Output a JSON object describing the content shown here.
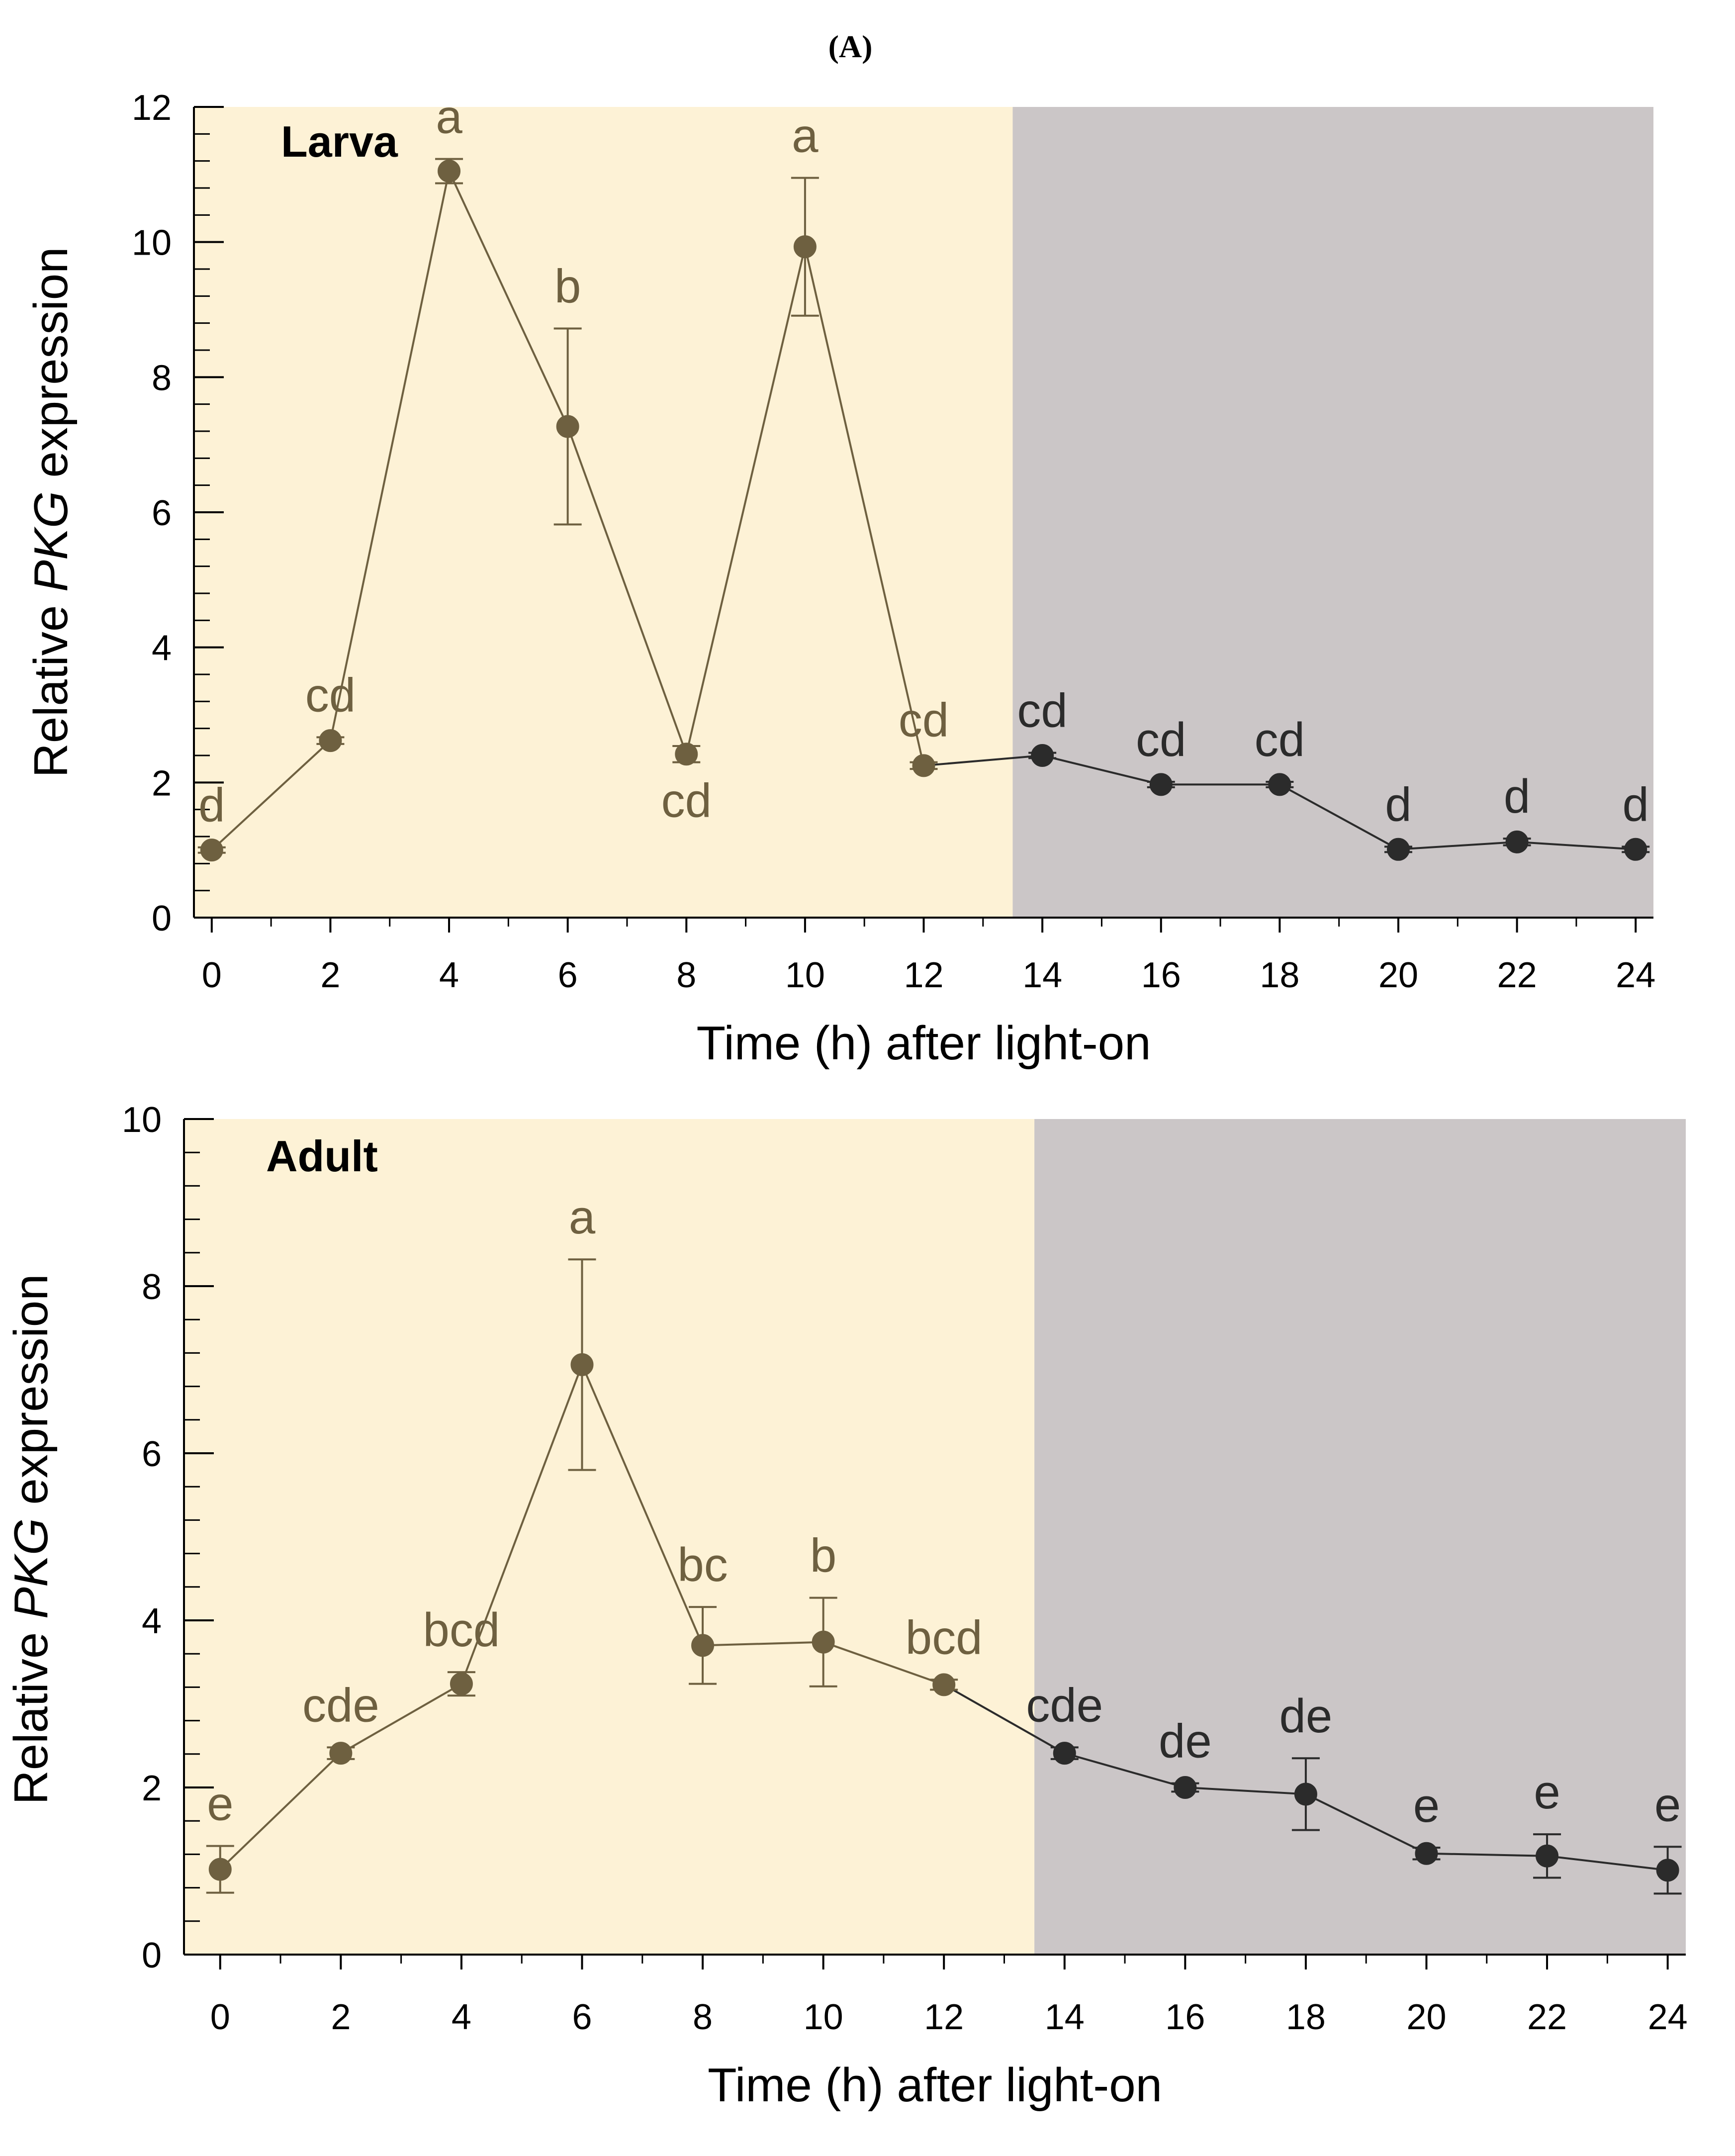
{
  "figure_label": "(A)",
  "colors": {
    "light_bg": "#fdf2d6",
    "dark_bg": "#cbc6c7",
    "light_series": "#6e6040",
    "dark_series": "#2b2b2b",
    "axis": "#000000"
  },
  "chart_data": [
    {
      "type": "line",
      "panel": "Larva",
      "title": "Larva",
      "xlabel": "Time (h) after light-on",
      "ylabel_parts": [
        "Relative ",
        "PKG",
        " expression"
      ],
      "xlim": [
        -0.3,
        24.3
      ],
      "ylim": [
        0,
        12
      ],
      "xticks": [
        0,
        2,
        4,
        6,
        8,
        10,
        12,
        14,
        16,
        18,
        20,
        22,
        24
      ],
      "yticks": [
        0,
        2,
        4,
        6,
        8,
        10,
        12
      ],
      "light_phase": [
        -0.3,
        13.5
      ],
      "dark_phase": [
        13.5,
        24.3
      ],
      "x": [
        0,
        2,
        4,
        6,
        8,
        10,
        12,
        14,
        16,
        18,
        20,
        22,
        24
      ],
      "y": [
        1.0,
        2.62,
        11.05,
        7.27,
        2.42,
        9.93,
        2.25,
        2.4,
        1.97,
        1.97,
        1.01,
        1.12,
        1.01
      ],
      "err": [
        0.04,
        0.05,
        0.18,
        1.45,
        0.12,
        1.02,
        0.05,
        0.04,
        0.04,
        0.04,
        0.04,
        0.05,
        0.04
      ],
      "letters": [
        "d",
        "cd",
        "a",
        "b",
        "cd",
        "a",
        "cd",
        "cd",
        "cd",
        "cd",
        "d",
        "d",
        "d"
      ],
      "letter_pos": [
        "above",
        "above",
        "above",
        "above",
        "below",
        "above",
        "above",
        "above",
        "above",
        "above",
        "above",
        "above",
        "above"
      ]
    },
    {
      "type": "line",
      "panel": "Adult",
      "title": "Adult",
      "xlabel": "Time (h) after light-on",
      "ylabel_parts": [
        "Relative ",
        "PKG",
        " expression"
      ],
      "xlim": [
        -0.6,
        24.3
      ],
      "ylim": [
        0,
        10
      ],
      "xticks": [
        0,
        2,
        4,
        6,
        8,
        10,
        12,
        14,
        16,
        18,
        20,
        22,
        24
      ],
      "yticks": [
        0,
        2,
        4,
        6,
        8,
        10
      ],
      "light_phase": [
        -0.6,
        13.5
      ],
      "dark_phase": [
        13.5,
        24.3
      ],
      "x": [
        0,
        2,
        4,
        6,
        8,
        10,
        12,
        14,
        16,
        18,
        20,
        22,
        24
      ],
      "y": [
        1.02,
        2.41,
        3.24,
        7.06,
        3.7,
        3.74,
        3.23,
        2.41,
        2.0,
        1.92,
        1.21,
        1.18,
        1.01
      ],
      "err": [
        0.28,
        0.07,
        0.14,
        1.26,
        0.46,
        0.53,
        0.06,
        0.07,
        0.05,
        0.43,
        0.07,
        0.26,
        0.28
      ],
      "letters": [
        "e",
        "cde",
        "bcd",
        "a",
        "bc",
        "b",
        "bcd",
        "cde",
        "de",
        "de",
        "e",
        "e",
        "e"
      ],
      "letter_pos": [
        "above",
        "above",
        "above",
        "above",
        "above",
        "above",
        "above",
        "above",
        "above",
        "above",
        "above",
        "above",
        "above"
      ]
    }
  ]
}
